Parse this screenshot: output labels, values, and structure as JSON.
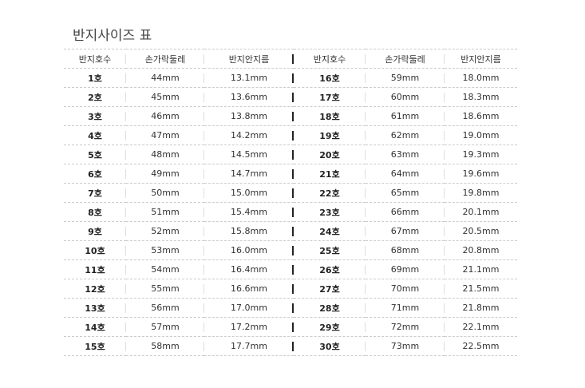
{
  "title": "반지사이즈 표",
  "headers": [
    "반지호수",
    "손가락둘레",
    "반지안지름",
    "반지호수",
    "손가락둘레",
    "반지안지름"
  ],
  "rows": [
    [
      "1호",
      "44mm",
      "13.1mm",
      "16호",
      "59mm",
      "18.0mm"
    ],
    [
      "2호",
      "45mm",
      "13.6mm",
      "17호",
      "60mm",
      "18.3mm"
    ],
    [
      "3호",
      "46mm",
      "13.8mm",
      "18호",
      "61mm",
      "18.6mm"
    ],
    [
      "4호",
      "47mm",
      "14.2mm",
      "19호",
      "62mm",
      "19.0mm"
    ],
    [
      "5호",
      "48mm",
      "14.5mm",
      "20호",
      "63mm",
      "19.3mm"
    ],
    [
      "6호",
      "49mm",
      "14.7mm",
      "21호",
      "64mm",
      "19.6mm"
    ],
    [
      "7호",
      "50mm",
      "15.0mm",
      "22호",
      "65mm",
      "19.8mm"
    ],
    [
      "8호",
      "51mm",
      "15.4mm",
      "23호",
      "66mm",
      "20.1mm"
    ],
    [
      "9호",
      "52mm",
      "15.8mm",
      "24호",
      "67mm",
      "20.5mm"
    ],
    [
      "10호",
      "53mm",
      "16.0mm",
      "25호",
      "68mm",
      "20.8mm"
    ],
    [
      "11호",
      "54mm",
      "16.4mm",
      "26호",
      "69mm",
      "21.1mm"
    ],
    [
      "12호",
      "55mm",
      "16.6mm",
      "27호",
      "70mm",
      "21.5mm"
    ],
    [
      "13호",
      "56mm",
      "17.0mm",
      "28호",
      "71mm",
      "21.8mm"
    ],
    [
      "14호",
      "57mm",
      "17.2mm",
      "29호",
      "72mm",
      "22.1mm"
    ],
    [
      "15호",
      "58mm",
      "17.7mm",
      "30호",
      "73mm",
      "22.5mm"
    ]
  ]
}
